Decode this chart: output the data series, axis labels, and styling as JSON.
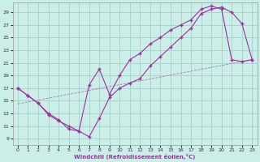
{
  "xlabel": "Windchill (Refroidissement éolien,°C)",
  "bg_color": "#cceee8",
  "grid_color": "#aad4cc",
  "line_color": "#993399",
  "x_ticks": [
    0,
    1,
    2,
    3,
    4,
    5,
    6,
    7,
    8,
    9,
    10,
    11,
    12,
    13,
    14,
    15,
    16,
    17,
    18,
    19,
    20,
    21,
    22,
    23
  ],
  "y_ticks": [
    9,
    11,
    13,
    15,
    17,
    19,
    21,
    23,
    25,
    27,
    29
  ],
  "ylim": [
    8.0,
    30.5
  ],
  "xlim": [
    -0.5,
    23.5
  ],
  "curve1_x": [
    0,
    1,
    2,
    3,
    4,
    5,
    6,
    7,
    8,
    9,
    10,
    11,
    12,
    13,
    14,
    15,
    16,
    17,
    18,
    19,
    20,
    21,
    22,
    23
  ],
  "curve1_y": [
    17.0,
    15.8,
    14.6,
    13.0,
    12.0,
    10.5,
    10.2,
    9.3,
    12.2,
    15.5,
    17.0,
    17.8,
    18.5,
    20.5,
    22.0,
    23.5,
    25.0,
    26.5,
    28.8,
    29.5,
    29.8,
    29.0,
    27.2,
    21.5
  ],
  "curve2_x": [
    0,
    1,
    2,
    3,
    4,
    5,
    6,
    7,
    8,
    9,
    10,
    11,
    12,
    13,
    14,
    15,
    16,
    17,
    18,
    19,
    20,
    21,
    22,
    23
  ],
  "curve2_y": [
    17.0,
    15.8,
    14.6,
    12.8,
    11.8,
    11.0,
    10.2,
    17.5,
    20.0,
    16.0,
    19.0,
    21.5,
    22.5,
    24.0,
    25.0,
    26.2,
    27.0,
    27.8,
    29.5,
    30.0,
    29.5,
    21.5,
    21.2,
    21.5
  ],
  "curve3_x": [
    0,
    23
  ],
  "curve3_y": [
    14.5,
    21.5
  ]
}
